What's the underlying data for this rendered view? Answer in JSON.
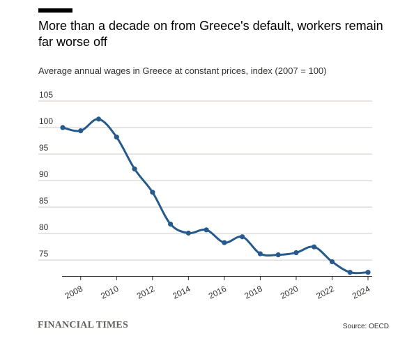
{
  "header": {
    "title": "More than a decade on from Greece's default, workers remain far worse off",
    "subtitle": "Average annual wages in Greece at constant prices, index (2007 = 100)"
  },
  "footer": {
    "brand": "FINANCIAL TIMES",
    "source": "Source: OECD"
  },
  "chart_data": {
    "type": "line",
    "title": "More than a decade on from Greece's default, workers remain far worse off",
    "subtitle": "Average annual wages in Greece at constant prices, index (2007 = 100)",
    "x": [
      2007,
      2008,
      2009,
      2010,
      2011,
      2012,
      2013,
      2014,
      2015,
      2016,
      2017,
      2018,
      2019,
      2020,
      2021,
      2022,
      2023,
      2024
    ],
    "series": [
      {
        "values": [
          100.0,
          99.4,
          101.6,
          98.2,
          92.2,
          87.8,
          81.8,
          80.1,
          80.7,
          78.3,
          79.4,
          76.2,
          76.0,
          76.4,
          77.5,
          74.7,
          72.7,
          72.7
        ]
      }
    ],
    "xticks": [
      2008,
      2010,
      2012,
      2014,
      2016,
      2018,
      2020,
      2022,
      2024
    ],
    "yticks": [
      75,
      80,
      85,
      90,
      95,
      100,
      105
    ],
    "xlim": [
      2007,
      2024
    ],
    "ylim": [
      72,
      105
    ],
    "grid": "horizontal",
    "colors": {
      "line": "#265a8c",
      "grid": "#cfcac5",
      "axis": "#33302e"
    }
  }
}
